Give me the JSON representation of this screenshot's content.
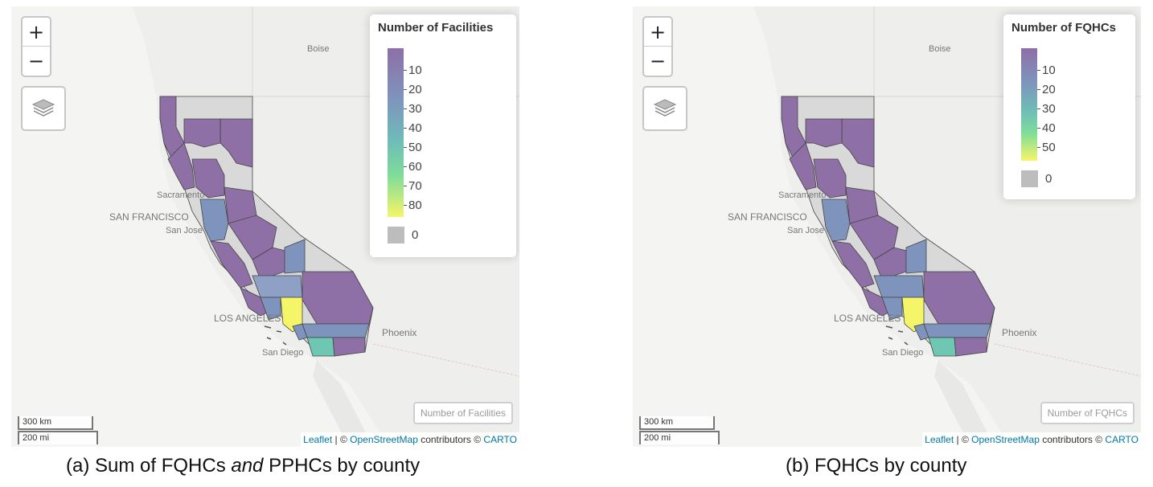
{
  "colors": {
    "ocean": "#f4f4f2",
    "land": "#eeeeec",
    "no_data": "#d9d9d9",
    "scale_dark": "#8e6fa6",
    "scale_mid": "#7e94bd",
    "scale_teal": "#6ec6b3",
    "scale_yellow": "#f5f56a",
    "link": "#0078A8"
  },
  "panels": [
    {
      "caption_prefix": "(a) Sum of FQHCs ",
      "caption_italic": "and",
      "caption_suffix": " PPHCs by county",
      "legend": {
        "title": "Number of Facilities",
        "ticks": [
          "10",
          "20",
          "30",
          "40",
          "50",
          "60",
          "70",
          "80"
        ],
        "zero_label": "0",
        "gradient": [
          "#8e6fa6",
          "#7e94bd",
          "#6fbcb8",
          "#7edc9a",
          "#f5f56a"
        ]
      },
      "legend_button": "Number of Facilities",
      "fills": {
        "la": "#f5f56a",
        "sd": "#6ec6b3",
        "bay": "#7e94bd",
        "inland": "#8e6fa6",
        "kern": "#8ea0c6"
      }
    },
    {
      "caption": "(b) FQHCs by county",
      "legend": {
        "title": "Number of FQHCs",
        "ticks": [
          "10",
          "20",
          "30",
          "40",
          "50"
        ],
        "zero_label": "0",
        "gradient": [
          "#8e6fa6",
          "#7e94bd",
          "#6fbcb8",
          "#7edc9a",
          "#f5f56a"
        ]
      },
      "legend_button": "Number of FQHCs",
      "fills": {
        "la": "#f5f56a",
        "sd": "#6ec6b3",
        "bay": "#7e94bd",
        "inland": "#8e6fa6",
        "kern": "#7e94bd"
      }
    }
  ],
  "map_labels": {
    "boise": "Boise",
    "sacramento": "Sacramento",
    "san_francisco": "SAN FRANCISCO",
    "san_jose": "San Jose",
    "los_angeles": "LOS ANGELES",
    "phoenix": "Phoenix",
    "san_diego": "San Diego"
  },
  "controls": {
    "zoom_in": "+",
    "zoom_out": "−",
    "layers_icon": "layers-icon"
  },
  "scale": {
    "km": "300 km",
    "mi": "200 mi"
  },
  "attribution": {
    "leaflet": "Leaflet",
    "sep": " | © ",
    "osm": "OpenStreetMap",
    "contributors": " contributors © ",
    "carto": "CARTO"
  }
}
